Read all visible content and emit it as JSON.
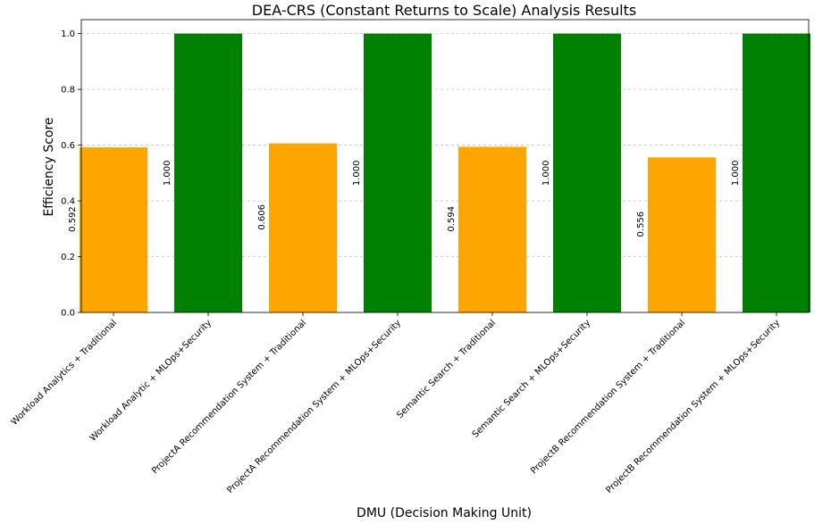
{
  "chart_data": {
    "type": "bar",
    "title": "DEA-CRS (Constant Returns to Scale) Analysis Results",
    "xlabel": "DMU (Decision Making Unit)",
    "ylabel": "Efficiency Score",
    "ylim": [
      0,
      1.05
    ],
    "yticks": [
      "0.0",
      "0.2",
      "0.4",
      "0.6",
      "0.8",
      "1.0"
    ],
    "grid": "y-dashed",
    "categories": [
      "Workload Analytics + Traditional",
      "Workload Analytic + MLOps+Security",
      "ProjectA Recommendation System + Traditional",
      "ProjectA Recommendation System + MLOps+Security",
      "Semantic Search  + Traditional",
      "Semantic Search  + MLOps+Security",
      "ProjectB Recommendation System + Traditional",
      "ProjectB Recommendation System + MLOps+Security"
    ],
    "values": [
      0.592,
      1.0,
      0.606,
      1.0,
      0.594,
      1.0,
      0.556,
      1.0
    ],
    "value_labels": [
      "0.592",
      "1.000",
      "0.606",
      "1.000",
      "0.594",
      "1.000",
      "0.556",
      "1.000"
    ],
    "colors": [
      "#FFA500",
      "#008000",
      "#FFA500",
      "#008000",
      "#FFA500",
      "#008000",
      "#FFA500",
      "#008000"
    ]
  }
}
